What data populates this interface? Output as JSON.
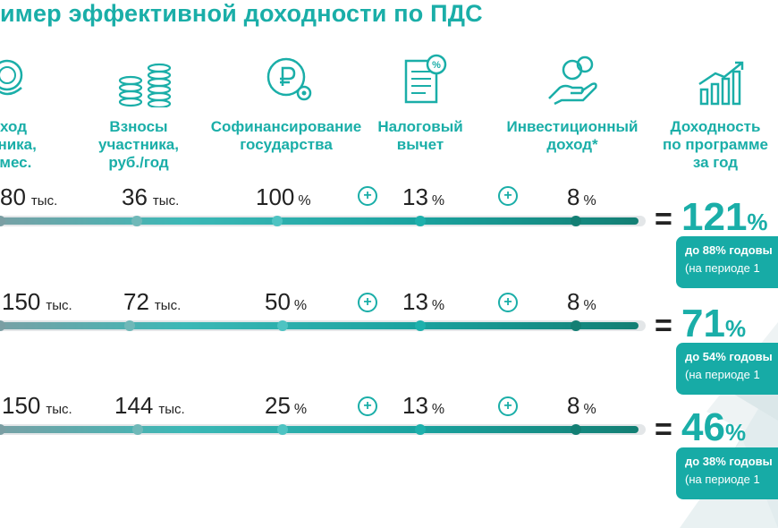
{
  "title": "имер эффективной доходности по ПДС",
  "headers": [
    {
      "text": "ход\nтника,\n/мес.",
      "icon": "coins-icon"
    },
    {
      "text": "Взносы\nучастника,\nруб./год",
      "icon": "coin-stacks-icon"
    },
    {
      "text": "Софинансирование\nгосударства",
      "icon": "ruble-gear-icon"
    },
    {
      "text": "Налоговый\nвычет",
      "icon": "tax-document-icon"
    },
    {
      "text": "Инвестиционный\nдоход*",
      "icon": "hand-coins-icon"
    },
    {
      "text": "Доходность\nпо программе\nза год",
      "icon": "growth-chart-icon"
    }
  ],
  "rows": [
    {
      "income": "80",
      "income_unit": "тыс.",
      "contrib": "36",
      "contrib_unit": "тыс.",
      "cofin": "100",
      "tax": "13",
      "invest": "8",
      "pct": "%",
      "result": "121",
      "note1": "до 88% годовы",
      "note2": "(на периоде 1"
    },
    {
      "income": "150",
      "income_unit": "тыс.",
      "contrib": "72",
      "contrib_unit": "тыс.",
      "cofin": "50",
      "tax": "13",
      "invest": "8",
      "pct": "%",
      "result": "71",
      "note1": "до 54% годовы",
      "note2": "(на периоде 1"
    },
    {
      "income": "150",
      "income_unit": "тыс.",
      "contrib": "144",
      "contrib_unit": "тыс.",
      "cofin": "25",
      "tax": "13",
      "invest": "8",
      "pct": "%",
      "result": "46",
      "note1": "до 38% годовы",
      "note2": "(на периоде 1"
    }
  ],
  "plus_sign": "+",
  "equals_sign": "=",
  "colors": {
    "accent": "#1aaea8",
    "dark_teal": "#137f74",
    "text": "#222222"
  }
}
